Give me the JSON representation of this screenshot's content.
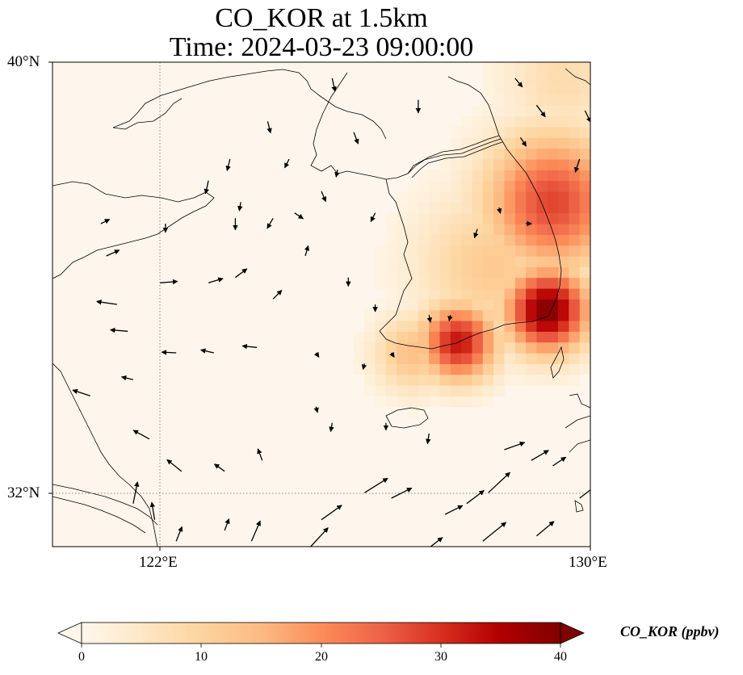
{
  "title": {
    "line1": "CO_KOR at 1.5km",
    "line2": "Time: 2024-03-23 09:00:00"
  },
  "axes": {
    "lat_labels": [
      "40°N",
      "32°N"
    ],
    "lon_labels": [
      "122°E",
      "130°E"
    ],
    "extent": {
      "lon_min": 120,
      "lon_max": 130,
      "lat_min": 31,
      "lat_max": 40
    }
  },
  "colorbar": {
    "label": "CO_KOR (ppbv)",
    "ticks": [
      "0",
      "10",
      "20",
      "30",
      "40"
    ],
    "range": [
      0,
      40
    ],
    "colormap": "OrRd",
    "extend": "both"
  },
  "colors": {
    "background_field": "#fef6ec",
    "gridline": "#888888"
  },
  "field": {
    "description_units": "ppbv",
    "hotspots": [
      {
        "lon": 129.2,
        "lat": 35.4,
        "value": 40,
        "spread": 0.55
      },
      {
        "lon": 127.55,
        "lat": 34.8,
        "value": 33,
        "spread": 0.5
      },
      {
        "lon": 129.3,
        "lat": 37.4,
        "value": 28,
        "spread": 0.9
      },
      {
        "lon": 128.2,
        "lat": 36.2,
        "value": 12,
        "spread": 1.0
      },
      {
        "lon": 126.7,
        "lat": 34.6,
        "value": 14,
        "spread": 0.5
      },
      {
        "lon": 129.5,
        "lat": 39.7,
        "value": 8,
        "spread": 0.8
      }
    ]
  },
  "wind_vectors": [
    {
      "lon": 122.0,
      "lat": 35.9,
      "u": 1.2,
      "v": 0.1
    },
    {
      "lon": 122.9,
      "lat": 35.9,
      "u": 1.0,
      "v": 0.3
    },
    {
      "lon": 123.4,
      "lat": 36.0,
      "u": 0.8,
      "v": 0.6
    },
    {
      "lon": 121.2,
      "lat": 35.5,
      "u": -1.4,
      "v": 0.2
    },
    {
      "lon": 121.4,
      "lat": 35.0,
      "u": -1.2,
      "v": 0.1
    },
    {
      "lon": 122.3,
      "lat": 34.6,
      "u": -1.0,
      "v": 0.05
    },
    {
      "lon": 123.0,
      "lat": 34.6,
      "u": -0.9,
      "v": 0.2
    },
    {
      "lon": 123.8,
      "lat": 34.7,
      "u": -1.0,
      "v": 0.1
    },
    {
      "lon": 121.5,
      "lat": 34.1,
      "u": -0.8,
      "v": 0.2
    },
    {
      "lon": 120.7,
      "lat": 33.8,
      "u": -1.2,
      "v": 0.4
    },
    {
      "lon": 121.8,
      "lat": 33.0,
      "u": -1.1,
      "v": 0.6
    },
    {
      "lon": 122.4,
      "lat": 32.4,
      "u": -1.0,
      "v": 0.8
    },
    {
      "lon": 123.2,
      "lat": 32.4,
      "u": -0.7,
      "v": 0.5
    },
    {
      "lon": 123.9,
      "lat": 32.6,
      "u": -0.3,
      "v": 0.8
    },
    {
      "lon": 121.5,
      "lat": 31.8,
      "u": 0.3,
      "v": 1.5
    },
    {
      "lon": 121.9,
      "lat": 31.5,
      "u": -0.2,
      "v": 1.2
    },
    {
      "lon": 122.3,
      "lat": 31.1,
      "u": 0.4,
      "v": 1.0
    },
    {
      "lon": 123.2,
      "lat": 31.3,
      "u": 0.3,
      "v": 0.8
    },
    {
      "lon": 123.7,
      "lat": 31.1,
      "u": 0.6,
      "v": 1.4
    },
    {
      "lon": 124.8,
      "lat": 31.0,
      "u": 1.2,
      "v": 1.3
    },
    {
      "lon": 125.0,
      "lat": 31.5,
      "u": 1.4,
      "v": 1.0
    },
    {
      "lon": 125.8,
      "lat": 32.0,
      "u": 1.6,
      "v": 1.0
    },
    {
      "lon": 126.3,
      "lat": 31.9,
      "u": 1.4,
      "v": 0.7
    },
    {
      "lon": 127.3,
      "lat": 31.6,
      "u": 1.2,
      "v": 0.6
    },
    {
      "lon": 127.7,
      "lat": 31.8,
      "u": 1.2,
      "v": 0.9
    },
    {
      "lon": 128.1,
      "lat": 32.0,
      "u": 1.5,
      "v": 1.4
    },
    {
      "lon": 126.9,
      "lat": 30.9,
      "u": 1.3,
      "v": 1.0
    },
    {
      "lon": 128.0,
      "lat": 31.1,
      "u": 1.6,
      "v": 1.3
    },
    {
      "lon": 129.0,
      "lat": 31.2,
      "u": 1.2,
      "v": 1.0
    },
    {
      "lon": 129.8,
      "lat": 31.9,
      "u": 1.3,
      "v": 1.0
    },
    {
      "lon": 128.4,
      "lat": 32.8,
      "u": 1.4,
      "v": 0.5
    },
    {
      "lon": 128.9,
      "lat": 32.6,
      "u": 1.2,
      "v": 0.7
    },
    {
      "lon": 129.3,
      "lat": 32.5,
      "u": 0.9,
      "v": 0.6
    },
    {
      "lon": 127.0,
      "lat": 33.1,
      "u": -0.1,
      "v": -0.7
    },
    {
      "lon": 126.2,
      "lat": 33.3,
      "u": 0.0,
      "v": -0.5
    },
    {
      "lon": 125.2,
      "lat": 33.3,
      "u": -0.1,
      "v": -0.6
    },
    {
      "lon": 124.9,
      "lat": 33.6,
      "u": 0.1,
      "v": -0.4
    },
    {
      "lon": 124.9,
      "lat": 34.6,
      "u": 0.2,
      "v": -0.3
    },
    {
      "lon": 125.8,
      "lat": 34.4,
      "u": -0.1,
      "v": -0.4
    },
    {
      "lon": 126.3,
      "lat": 34.6,
      "u": 0.2,
      "v": -0.3
    },
    {
      "lon": 127.0,
      "lat": 35.3,
      "u": 0.1,
      "v": -0.5
    },
    {
      "lon": 127.4,
      "lat": 35.3,
      "u": -0.1,
      "v": -0.4
    },
    {
      "lon": 126.0,
      "lat": 35.5,
      "u": 0.0,
      "v": -0.5
    },
    {
      "lon": 125.5,
      "lat": 36.0,
      "u": 0.0,
      "v": -0.6
    },
    {
      "lon": 124.1,
      "lat": 35.6,
      "u": 0.6,
      "v": 0.6
    },
    {
      "lon": 124.7,
      "lat": 36.4,
      "u": 0.2,
      "v": 0.7
    },
    {
      "lon": 127.9,
      "lat": 36.9,
      "u": -0.2,
      "v": -0.6
    },
    {
      "lon": 128.3,
      "lat": 37.3,
      "u": 0.1,
      "v": -0.4
    },
    {
      "lon": 128.8,
      "lat": 37.0,
      "u": 0.4,
      "v": 0.0
    },
    {
      "lon": 129.8,
      "lat": 38.2,
      "u": -0.3,
      "v": -0.9
    },
    {
      "lon": 128.7,
      "lat": 38.6,
      "u": 0.4,
      "v": -0.6
    },
    {
      "lon": 128.6,
      "lat": 39.7,
      "u": 0.5,
      "v": -0.6
    },
    {
      "lon": 129.0,
      "lat": 39.2,
      "u": 0.6,
      "v": -0.8
    },
    {
      "lon": 129.9,
      "lat": 39.1,
      "u": 0.4,
      "v": -0.8
    },
    {
      "lon": 126.8,
      "lat": 39.3,
      "u": 0.0,
      "v": -0.9
    },
    {
      "lon": 125.6,
      "lat": 38.7,
      "u": 0.3,
      "v": -0.8
    },
    {
      "lon": 125.0,
      "lat": 37.6,
      "u": 0.3,
      "v": -0.7
    },
    {
      "lon": 124.4,
      "lat": 38.2,
      "u": -0.3,
      "v": -0.6
    },
    {
      "lon": 124.0,
      "lat": 38.9,
      "u": 0.2,
      "v": -0.8
    },
    {
      "lon": 125.2,
      "lat": 39.7,
      "u": 0.2,
      "v": -0.9
    },
    {
      "lon": 123.4,
      "lat": 37.1,
      "u": 0.0,
      "v": -0.8
    },
    {
      "lon": 123.5,
      "lat": 37.4,
      "u": -0.1,
      "v": -0.6
    },
    {
      "lon": 122.9,
      "lat": 37.8,
      "u": -0.2,
      "v": -0.9
    },
    {
      "lon": 123.3,
      "lat": 38.2,
      "u": -0.2,
      "v": -0.8
    },
    {
      "lon": 122.1,
      "lat": 37.0,
      "u": 0.0,
      "v": -0.6
    },
    {
      "lon": 124.1,
      "lat": 37.1,
      "u": -0.4,
      "v": -0.7
    },
    {
      "lon": 124.5,
      "lat": 37.2,
      "u": 0.6,
      "v": -0.4
    },
    {
      "lon": 125.3,
      "lat": 38.0,
      "u": -0.1,
      "v": -0.5
    },
    {
      "lon": 121.0,
      "lat": 36.4,
      "u": 0.9,
      "v": 0.4
    },
    {
      "lon": 120.9,
      "lat": 37.0,
      "u": 0.6,
      "v": 0.3
    },
    {
      "lon": 126.0,
      "lat": 37.2,
      "u": -0.3,
      "v": -0.6
    }
  ]
}
